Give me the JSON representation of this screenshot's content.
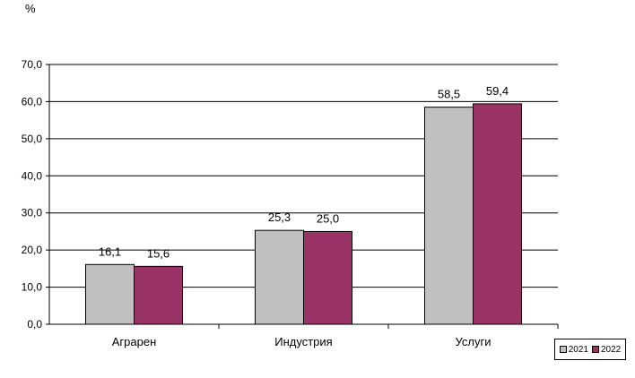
{
  "chart_data": {
    "type": "bar",
    "unit": "%",
    "categories": [
      "Аграрен",
      "Индустрия",
      "Услуги"
    ],
    "series": [
      {
        "name": "2021",
        "values": [
          16.1,
          25.3,
          58.5
        ],
        "labels": [
          "16,1",
          "25,3",
          "58,5"
        ],
        "color": "#c0c0c0"
      },
      {
        "name": "2022",
        "values": [
          15.6,
          25.0,
          59.4
        ],
        "labels": [
          "15,6",
          "25,0",
          "59,4"
        ],
        "color": "#993366"
      }
    ],
    "ylim": [
      0,
      70
    ],
    "yticks": [
      "0,0",
      "10,0",
      "20,0",
      "30,0",
      "40,0",
      "50,0",
      "60,0",
      "70,0"
    ],
    "grid": true,
    "legend_position": "bottom-right"
  }
}
